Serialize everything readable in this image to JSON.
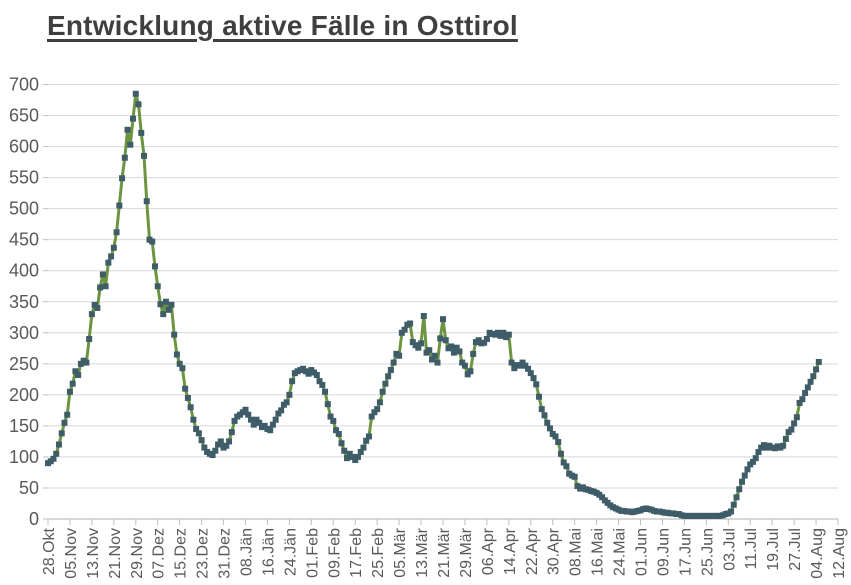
{
  "title": "Entwicklung aktive Fälle in Osttirol",
  "chart_data": {
    "type": "line",
    "title": "Entwicklung aktive Fälle in Osttirol",
    "legend": "none",
    "grid": "horizontal",
    "x_axis": {
      "tick_labels": [
        "28.Okt",
        "05.Nov",
        "13.Nov",
        "21.Nov",
        "29.Nov",
        "07.Dez",
        "15.Dez",
        "23.Dez",
        "31.Dez",
        "08.Jän",
        "16.Jän",
        "24.Jän",
        "01.Feb",
        "09.Feb",
        "17.Feb",
        "25.Feb",
        "05.Mär",
        "13.Mär",
        "21.Mär",
        "29.Mär",
        "06.Apr",
        "14.Apr",
        "22.Apr",
        "30.Apr",
        "08.Mai",
        "16.Mai",
        "24.Mai",
        "01.Jun",
        "09.Jun",
        "17.Jun",
        "25.Jun",
        "03.Jul",
        "11.Jul",
        "19.Jul",
        "27.Jul",
        "04.Aug",
        "12.Aug"
      ],
      "days_per_tick": 8,
      "label_rotation_deg": 90
    },
    "y_axis": {
      "min": 0,
      "max": 700,
      "step": 50,
      "tick_labels": [
        0,
        50,
        100,
        150,
        200,
        250,
        300,
        350,
        400,
        450,
        500,
        550,
        600,
        650,
        700
      ]
    },
    "series": [
      {
        "name": "aktive Fälle Osttirol",
        "frequency": "daily",
        "start": "28.Okt",
        "end": "04.Aug",
        "marker": "square",
        "values": [
          90,
          93,
          97,
          105,
          120,
          138,
          155,
          168,
          205,
          218,
          238,
          232,
          250,
          255,
          252,
          290,
          330,
          345,
          340,
          373,
          394,
          375,
          413,
          423,
          437,
          462,
          505,
          549,
          582,
          627,
          603,
          645,
          685,
          668,
          622,
          585,
          512,
          450,
          447,
          407,
          375,
          346,
          330,
          350,
          337,
          345,
          297,
          265,
          250,
          243,
          210,
          195,
          180,
          160,
          145,
          138,
          127,
          115,
          108,
          105,
          103,
          110,
          120,
          125,
          115,
          118,
          125,
          140,
          158,
          165,
          168,
          172,
          176,
          168,
          160,
          152,
          160,
          155,
          148,
          150,
          145,
          143,
          152,
          160,
          170,
          175,
          184,
          188,
          200,
          222,
          235,
          238,
          240,
          242,
          238,
          234,
          240,
          236,
          232,
          222,
          216,
          205,
          185,
          165,
          158,
          143,
          137,
          122,
          110,
          98,
          105,
          100,
          95,
          100,
          108,
          115,
          126,
          133,
          165,
          172,
          177,
          188,
          205,
          218,
          230,
          240,
          252,
          266,
          263,
          300,
          305,
          313,
          315,
          285,
          280,
          276,
          283,
          327,
          268,
          272,
          257,
          263,
          252,
          291,
          322,
          288,
          275,
          278,
          268,
          276,
          270,
          252,
          247,
          233,
          238,
          266,
          285,
          288,
          283,
          284,
          290,
          300,
          298,
          297,
          300,
          295,
          300,
          293,
          297,
          252,
          243,
          248,
          247,
          252,
          247,
          242,
          235,
          227,
          217,
          197,
          177,
          167,
          155,
          146,
          137,
          133,
          124,
          105,
          91,
          85,
          73,
          70,
          68,
          53,
          49,
          51,
          48,
          47,
          45,
          44,
          42,
          39,
          35,
          30,
          26,
          22,
          19,
          17,
          15,
          13,
          13,
          12,
          12,
          11,
          12,
          13,
          14,
          16,
          17,
          16,
          15,
          13,
          12,
          12,
          11,
          10,
          10,
          9,
          9,
          8,
          8,
          6,
          5,
          5,
          5,
          5,
          5,
          5,
          5,
          5,
          5,
          5,
          5,
          5,
          5,
          5,
          6,
          8,
          9,
          12,
          23,
          35,
          48,
          60,
          70,
          80,
          88,
          92,
          98,
          108,
          115,
          119,
          115,
          118,
          115,
          114,
          117,
          115,
          118,
          129,
          140,
          144,
          154,
          164,
          187,
          193,
          203,
          212,
          221,
          230,
          241,
          253
        ]
      }
    ],
    "style": {
      "line_color": "#6d9440",
      "marker_color": "#3f5d68",
      "grid_color": "#d9d9d9",
      "axis_color": "#bfbfbf",
      "label_color": "#595959",
      "title_color": "#3f3f3f",
      "background": "#ffffff"
    }
  }
}
